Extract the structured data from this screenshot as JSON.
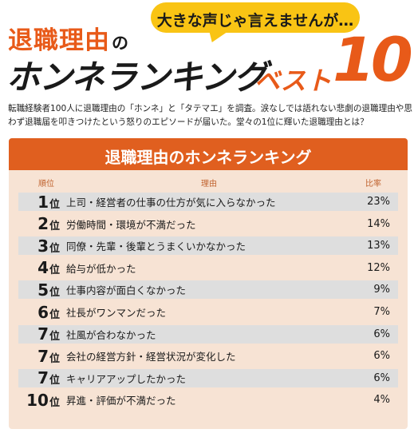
{
  "header": {
    "bubble": "大きな声じゃ言えませんが…",
    "title_line1": "退職理由",
    "title_no": "の",
    "title_line2": "ホンネランキング",
    "best": "ベスト",
    "ten": "10"
  },
  "lead": "転職経験者100人に退職理由の「ホンネ」と「タテマエ」を調査。涙なしでは語れない悲劇の退職理由や思わず退職届を叩きつけたという怒りのエピソードが届いた。堂々の1位に輝いた退職理由とは？",
  "panel": {
    "title": "退職理由のホンネランキング",
    "col_rank": "順位",
    "col_reason": "理由",
    "col_pct": "比率"
  },
  "ranking": [
    {
      "rank": "1",
      "suffix": "位",
      "reason": "上司・経営者の仕事の仕方が気に入らなかった",
      "pct": "23%"
    },
    {
      "rank": "2",
      "suffix": "位",
      "reason": "労働時間・環境が不満だった",
      "pct": "14%"
    },
    {
      "rank": "3",
      "suffix": "位",
      "reason": "同僚・先輩・後輩とうまくいかなかった",
      "pct": "13%"
    },
    {
      "rank": "4",
      "suffix": "位",
      "reason": "給与が低かった",
      "pct": "12%"
    },
    {
      "rank": "5",
      "suffix": "位",
      "reason": "仕事内容が面白くなかった",
      "pct": "9%"
    },
    {
      "rank": "6",
      "suffix": "位",
      "reason": "社長がワンマンだった",
      "pct": "7%"
    },
    {
      "rank": "7",
      "suffix": "位",
      "reason": "社風が合わなかった",
      "pct": "6%"
    },
    {
      "rank": "7",
      "suffix": "位",
      "reason": "会社の経営方針・経営状況が変化した",
      "pct": "6%"
    },
    {
      "rank": "7",
      "suffix": "位",
      "reason": "キャリアアップしたかった",
      "pct": "6%"
    },
    {
      "rank": "10",
      "suffix": "位",
      "reason": "昇進・評価が不満だった",
      "pct": "4%"
    }
  ],
  "colors": {
    "accent": "#e05f1f",
    "bubble": "#f9c414",
    "panel_bg": "#f7e3d4",
    "row_alt": "#dedede"
  }
}
